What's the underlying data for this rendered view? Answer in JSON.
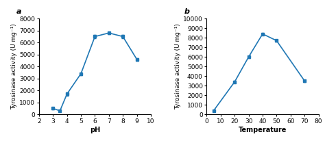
{
  "chart_data": [
    {
      "type": "line",
      "annotation": "a",
      "x": [
        3,
        3.5,
        4,
        5,
        6,
        7,
        8,
        9
      ],
      "values": [
        500,
        300,
        1700,
        3400,
        6500,
        6800,
        6500,
        4600
      ],
      "yerr": [
        80,
        60,
        120,
        120,
        120,
        100,
        120,
        120
      ],
      "x_label": "pH",
      "y_label": "Tyrosinase activity (U mg⁻¹)",
      "xlim": [
        2,
        10
      ],
      "ylim": [
        0,
        8000
      ],
      "xticks": [
        2,
        3,
        4,
        5,
        6,
        7,
        8,
        9,
        10
      ],
      "yticks": [
        0,
        1000,
        2000,
        3000,
        4000,
        5000,
        6000,
        7000,
        8000
      ],
      "marker": "square"
    },
    {
      "type": "line",
      "annotation": "b",
      "x": [
        5,
        20,
        30,
        40,
        50,
        70
      ],
      "values": [
        400,
        3400,
        6000,
        8400,
        7700,
        3500
      ],
      "yerr": [
        60,
        120,
        120,
        120,
        120,
        120
      ],
      "x_label": "Temperature",
      "y_label": "Tyrosinase activity (U mg⁻¹)",
      "xlim": [
        0,
        80
      ],
      "ylim": [
        0,
        10000
      ],
      "xticks": [
        0,
        10,
        20,
        30,
        40,
        50,
        60,
        70,
        80
      ],
      "yticks": [
        0,
        1000,
        2000,
        3000,
        4000,
        5000,
        6000,
        7000,
        8000,
        9000,
        10000
      ],
      "marker": "square"
    }
  ]
}
